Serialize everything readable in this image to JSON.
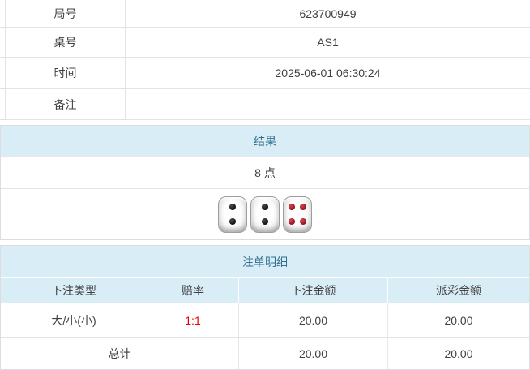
{
  "info_table": {
    "rows": [
      {
        "label": "局号",
        "value": "623700949"
      },
      {
        "label": "桌号",
        "value": "AS1"
      },
      {
        "label": "时间",
        "value": "2025-06-01 06:30:24"
      },
      {
        "label": "备注",
        "value": ""
      }
    ]
  },
  "result_section": {
    "title": "结果",
    "points": "8 点",
    "dice": [
      {
        "value": 2,
        "color": "black"
      },
      {
        "value": 2,
        "color": "black"
      },
      {
        "value": 4,
        "color": "red"
      }
    ]
  },
  "bets_section": {
    "title": "注单明细",
    "columns": [
      "下注类型",
      "赔率",
      "下注金额",
      "派彩金额"
    ],
    "rows": [
      {
        "type": "大/小(小)",
        "odds": "1:1",
        "bet": "20.00",
        "payout": "20.00"
      }
    ],
    "total": {
      "label": "总计",
      "bet": "20.00",
      "payout": "20.00"
    }
  },
  "colors": {
    "band_bg": "#d9edf7",
    "band_text": "#31708f",
    "odds_red": "#e60000",
    "border": "#e3e3e3",
    "text": "#404040"
  }
}
